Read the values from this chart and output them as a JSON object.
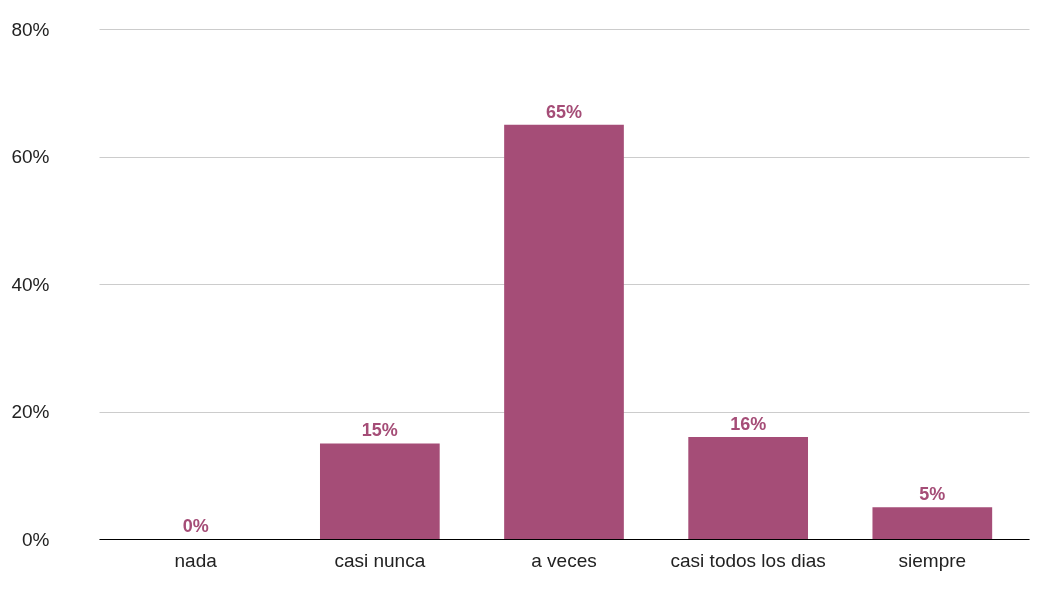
{
  "chart_data": {
    "type": "bar",
    "categories": [
      "nada",
      "casi nunca",
      "a veces",
      "casi todos los dias",
      "siempre"
    ],
    "values": [
      0,
      15,
      65,
      16,
      5
    ],
    "color": "#a54d77",
    "ylim": [
      0,
      80
    ],
    "yticks": [
      {
        "value": 0,
        "label": "0%"
      },
      {
        "value": 20,
        "label": "20%"
      },
      {
        "value": 40,
        "label": "40%"
      },
      {
        "value": 60,
        "label": "60%"
      },
      {
        "value": 80,
        "label": "80%"
      }
    ],
    "grid": "y",
    "data_labels": true,
    "value_labels": [
      "0%",
      "15%",
      "65%",
      "16%",
      "5%"
    ]
  }
}
